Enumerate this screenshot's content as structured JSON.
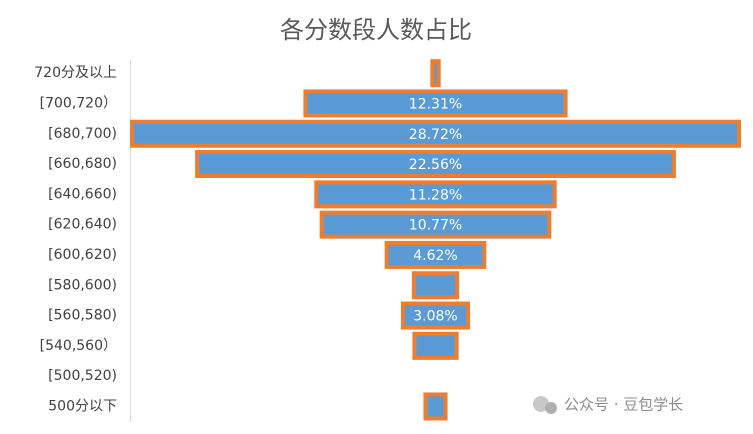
{
  "chart_data": {
    "type": "funnel",
    "title": "各分数段人数占比",
    "categories": [
      "720分及以上",
      "[700,720）",
      "[680,700)",
      "[660,680)",
      "[640,660)",
      "[620,640)",
      "[600,620)",
      "[580,600)",
      "[560,580)",
      "[540,560）",
      "[500,520)",
      "500分以下"
    ],
    "values": [
      0.3,
      12.31,
      28.72,
      22.56,
      11.28,
      10.77,
      4.62,
      2.05,
      3.08,
      2.0,
      0,
      0.95
    ],
    "value_labels": [
      null,
      "12.31%",
      "28.72%",
      "22.56%",
      "11.28%",
      "10.77%",
      "4.62%",
      null,
      "3.08%",
      null,
      null,
      null
    ],
    "color": "#5b9bd5",
    "border_color": "#ed7d31",
    "watermark": "公众号 · 豆包学长"
  }
}
